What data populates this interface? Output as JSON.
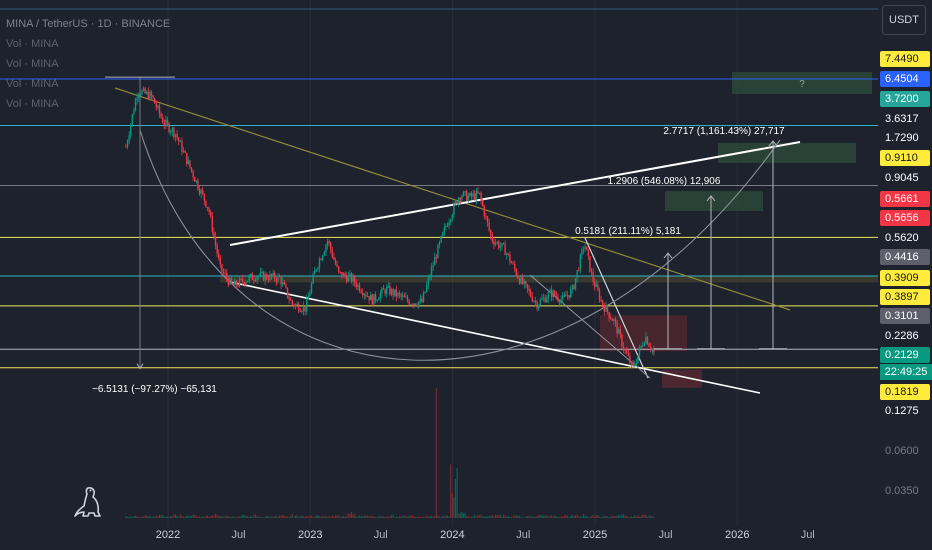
{
  "header": {
    "symbol_title": "MINA / TetherUS · 1D · BINANCE",
    "volume_labels": [
      "Vol · MINA",
      "Vol · MINA",
      "Vol · MINA",
      "Vol · MINA"
    ],
    "currency_button": "USDT"
  },
  "countdown": "22:49:25",
  "colors": {
    "background": "#1e222d",
    "grid_line": "#2a2e39",
    "yellow_level": "#f2e85a",
    "cyan_level": "#29b6c8",
    "blue_level": "#2962ff",
    "descending_trend": "#8c8a3a",
    "up_candle": "#089981",
    "down_candle": "#f23645",
    "white_line": "#ffffff",
    "arc": "#8a8f9c"
  },
  "price_labels": [
    {
      "text": "7.4490",
      "style": "yellow"
    },
    {
      "text": "6.4504",
      "style": "blue"
    },
    {
      "text": "3.7200",
      "style": "teal"
    },
    {
      "text": "3.6317",
      "style": "plain"
    },
    {
      "text": "1.7290",
      "style": "plain"
    },
    {
      "text": "0.9110",
      "style": "yellow"
    },
    {
      "text": "0.9045",
      "style": "plain"
    },
    {
      "text": "0.5661",
      "style": "red"
    },
    {
      "text": "0.5656",
      "style": "red"
    },
    {
      "text": "0.5620",
      "style": "plain"
    },
    {
      "text": "0.4416",
      "style": "gray"
    },
    {
      "text": "0.3909",
      "style": "yellow"
    },
    {
      "text": "0.3897",
      "style": "yellow"
    },
    {
      "text": "0.3101",
      "style": "gray"
    },
    {
      "text": "0.2286",
      "style": "plain"
    },
    {
      "text": "0.2129",
      "style": "green"
    },
    {
      "text": "0.1819",
      "style": "yellow"
    },
    {
      "text": "0.1275",
      "style": "plain"
    },
    {
      "text": "0.0600",
      "style": "dim"
    },
    {
      "text": "0.0350",
      "style": "dim"
    }
  ],
  "chart_data": {
    "type": "line",
    "title": "MINA / TetherUS · 1D · BINANCE",
    "y_scale": "log",
    "x_ticks": [
      "2022",
      "Jul",
      "2023",
      "Jul",
      "2024",
      "Jul",
      "2025",
      "Jul",
      "2026",
      "Jul"
    ],
    "x_year_ticks": [
      "2022",
      "2023",
      "2024",
      "2025",
      "2026"
    ],
    "price_path": {
      "x": [
        "2021-09-15",
        "2021-10-15",
        "2021-11-20",
        "2021-12-20",
        "2022-01-20",
        "2022-03-01",
        "2022-04-15",
        "2022-05-15",
        "2022-06-15",
        "2022-08-15",
        "2022-10-15",
        "2022-11-15",
        "2022-12-20",
        "2023-01-15",
        "2023-02-15",
        "2023-03-15",
        "2023-04-15",
        "2023-06-10",
        "2023-07-15",
        "2023-09-15",
        "2023-10-15",
        "2023-11-15",
        "2023-12-15",
        "2024-01-20",
        "2024-02-15",
        "2024-03-10",
        "2024-04-10",
        "2024-05-15",
        "2024-06-20",
        "2024-08-05",
        "2024-09-10",
        "2024-10-10",
        "2024-11-05",
        "2024-12-05",
        "2024-12-25",
        "2025-01-20",
        "2025-02-20",
        "2025-03-20",
        "2025-04-08",
        "2025-05-10",
        "2025-06-05"
      ],
      "close": [
        2.8,
        5.6,
        5.2,
        3.8,
        3.3,
        2.1,
        1.3,
        0.62,
        0.5,
        0.57,
        0.55,
        0.4,
        0.38,
        0.62,
        0.88,
        0.58,
        0.55,
        0.42,
        0.48,
        0.41,
        0.41,
        0.68,
        1.05,
        1.55,
        1.5,
        1.55,
        0.9,
        0.78,
        0.55,
        0.4,
        0.46,
        0.42,
        0.48,
        0.85,
        0.55,
        0.4,
        0.32,
        0.22,
        0.18,
        0.27,
        0.21
      ]
    },
    "horizontal_levels": [
      {
        "price": 6.4504,
        "color": "blue"
      },
      {
        "price": 3.6317,
        "color": "cyan"
      },
      {
        "price": 1.729,
        "color": "gray"
      },
      {
        "price": 0.911,
        "color": "yellow"
      },
      {
        "price": 0.5656,
        "color": "cyan"
      },
      {
        "price": 0.3909,
        "color": "yellow"
      },
      {
        "price": 0.2286,
        "color": "white"
      },
      {
        "price": 0.1819,
        "color": "yellow"
      }
    ],
    "measurements": [
      {
        "label": "−6.5131 (−97.27%) −65,131",
        "from": 6.6,
        "to": 0.18
      },
      {
        "label": "0.5181 (211.11%) 5,181",
        "from": 0.23,
        "to": 0.75
      },
      {
        "label": "1.2906 (546.08%) 12,906",
        "from": 0.23,
        "to": 1.52
      },
      {
        "label": "2.7717 (1,161.43%) 27,717",
        "from": 0.23,
        "to": 3.0
      },
      {
        "label": "?",
        "target": true
      }
    ],
    "volume": {
      "spike_date": "2023-11-20",
      "peak_value": 0.6,
      "relative": [
        0.04,
        0.05,
        0.06,
        0.05,
        0.07,
        0.04,
        0.08,
        0.05,
        0.06,
        0.04,
        0.05,
        0.09,
        0.05,
        0.04,
        0.06,
        0.05,
        0.07,
        0.04,
        0.05,
        0.06,
        0.05,
        0.08,
        0.06,
        0.05,
        0.07,
        0.04,
        0.06,
        0.05,
        0.16,
        0.05,
        0.07,
        0.04,
        0.05,
        0.06,
        0.04,
        0.05,
        0.06,
        0.04,
        0.07,
        0.05,
        0.06,
        1.0,
        0.12,
        0.05,
        0.07,
        0.05,
        0.06,
        0.08,
        0.05,
        0.06,
        0.04,
        0.05,
        0.06,
        0.05,
        0.04,
        0.06,
        0.05,
        0.07,
        0.05,
        0.06,
        0.04,
        0.05,
        0.07,
        0.05,
        0.06,
        0.09,
        0.05,
        0.04
      ]
    }
  }
}
